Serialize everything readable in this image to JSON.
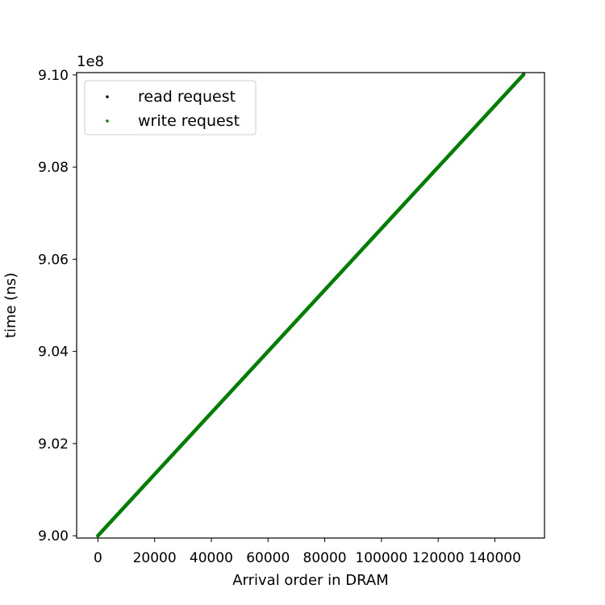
{
  "chart_data": {
    "type": "scatter",
    "xlabel": "Arrival order in DRAM",
    "ylabel": "time (ns)",
    "y_offset_text": "1e8",
    "y_scale": 100000000,
    "xlim": [
      -7500,
      157500
    ],
    "ylim": [
      899950000,
      910050000
    ],
    "x_ticks": [
      0,
      20000,
      40000,
      60000,
      80000,
      100000,
      120000,
      140000
    ],
    "x_tick_labels": [
      "0",
      "20000",
      "40000",
      "60000",
      "80000",
      "100000",
      "120000",
      "140000"
    ],
    "y_ticks": [
      900000000,
      902000000,
      904000000,
      906000000,
      908000000,
      910000000
    ],
    "y_tick_labels": [
      "9.00",
      "9.02",
      "9.04",
      "9.06",
      "9.08",
      "9.10"
    ],
    "grid": false,
    "legend_position": "upper-left",
    "series": [
      {
        "name": "read request",
        "color": "#000000",
        "x_range": [
          0,
          150000
        ],
        "y_range": [
          900000000,
          910000000
        ],
        "trend": "linear"
      },
      {
        "name": "write request",
        "color": "#008000",
        "x_range": [
          0,
          150000
        ],
        "y_range": [
          900000000,
          910000000
        ],
        "trend": "linear"
      }
    ]
  }
}
